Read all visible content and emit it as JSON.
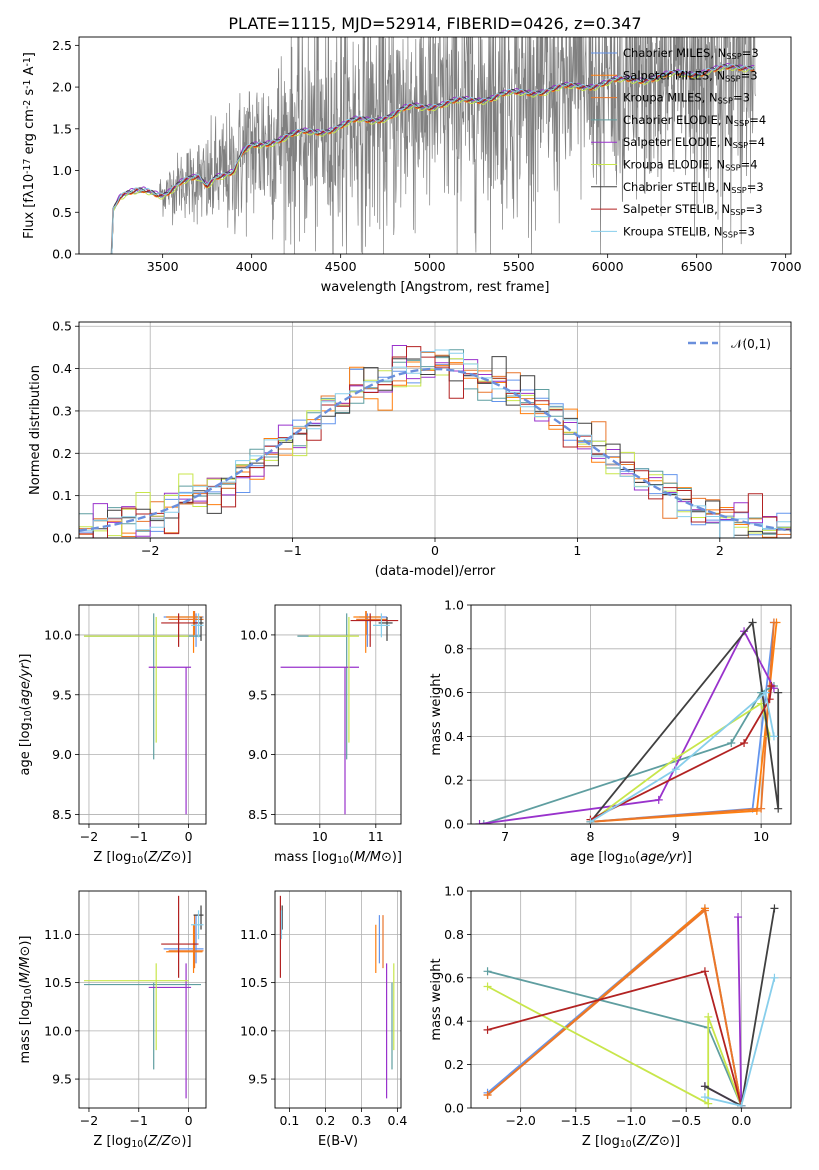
{
  "figure": {
    "title": "PLATE=1115, MJD=52914, FIBERID=0426, z=0.347"
  },
  "series_names": [
    "Chabrier MILES, N$_{SSP}$=3",
    "Salpeter MILES, N$_{SSP}$=3",
    "Kroupa MILES, N$_{SSP}$=3",
    "Chabrier ELODIE, N$_{SSP}$=4",
    "Salpeter ELODIE, N$_{SSP}$=4",
    "Kroupa ELODIE, N$_{SSP}$=4",
    "Chabrier STELIB, N$_{SSP}$=3",
    "Salpeter STELIB, N$_{SSP}$=3",
    "Kroupa STELIB, N$_{SSP}$=3"
  ],
  "colors": [
    "#6495ed",
    "#ff7f0e",
    "#e9762b",
    "#5f9ea0",
    "#9932cc",
    "#c8e64b",
    "#404040",
    "#b22222",
    "#87ceeb"
  ],
  "chart_data": [
    {
      "id": "spectrum",
      "type": "line",
      "xlabel": "wavelength [Angstrom, rest frame]",
      "ylabel": "Flux [f$_\\lambda$10$^{-17}$ erg cm$^{-2}$ s$^{-1}$ A$^{-1}$]",
      "xlim": [
        3030,
        7030
      ],
      "ylim": [
        0,
        2.6
      ],
      "xticks": [
        3500,
        4000,
        4500,
        5000,
        5500,
        6000,
        6500,
        7000
      ],
      "yticks": [
        0.0,
        0.5,
        1.0,
        1.5,
        2.0,
        2.5
      ],
      "legend": "upper right",
      "model_continuum": {
        "x": [
          3210,
          3220,
          3260,
          3300,
          3400,
          3500,
          3600,
          3700,
          3750,
          3800,
          3900,
          3950,
          4000,
          4100,
          4200,
          4300,
          4400,
          4500,
          4600,
          4700,
          4800,
          4860,
          4900,
          5000,
          5100,
          5200,
          5300,
          5400,
          5500,
          5600,
          5700,
          5800,
          5900,
          6000,
          6100,
          6200,
          6300,
          6400,
          6500,
          6560,
          6600,
          6700,
          6800
        ],
        "y": [
          0.0,
          0.55,
          0.7,
          0.72,
          0.74,
          0.72,
          0.85,
          0.9,
          0.82,
          0.95,
          0.98,
          1.2,
          1.28,
          1.35,
          1.4,
          1.45,
          1.48,
          1.52,
          1.6,
          1.62,
          1.66,
          1.72,
          1.76,
          1.78,
          1.8,
          1.83,
          1.86,
          1.9,
          1.92,
          1.95,
          1.97,
          2.0,
          2.02,
          2.05,
          2.08,
          2.1,
          2.12,
          2.15,
          2.17,
          2.2,
          2.2,
          2.22,
          2.25
        ]
      },
      "observed_data": {
        "x_range": [
          3210,
          6830
        ],
        "color": "#808080",
        "note_range": "noisy observed flux"
      }
    },
    {
      "id": "residuals",
      "type": "line",
      "xlabel": "(data-model)/error",
      "ylabel": "Normed distribution",
      "xlim": [
        -2.5,
        2.5
      ],
      "ylim": [
        0,
        0.51
      ],
      "xticks": [
        -2,
        -1,
        0,
        1,
        2
      ],
      "yticks": [
        0.0,
        0.1,
        0.2,
        0.3,
        0.4,
        0.5
      ],
      "legend": "upper right",
      "reference_label": "$\\mathcal{N}(0,1)$",
      "reference_color": "#6a8fdc",
      "bin_width": 0.1
    },
    {
      "id": "age_vs_Z",
      "type": "scatter",
      "xlabel": "Z [log$_{10}$($Z/Z_\\odot$)]",
      "ylabel": "age  [log$_{10}$($age/yr$)]",
      "xlim": [
        -2.2,
        0.35
      ],
      "ylim": [
        8.42,
        10.25
      ],
      "xticks": [
        -2,
        -1,
        0
      ],
      "yticks": [
        8.5,
        9.0,
        9.5,
        10.0
      ]
    },
    {
      "id": "age_vs_mass",
      "type": "scatter",
      "xlabel": "mass [log$_{10}$($M/M_\\odot$)]",
      "ylabel": "",
      "xlim": [
        9.2,
        11.45
      ],
      "ylim": [
        8.42,
        10.25
      ],
      "xticks": [
        10,
        11
      ],
      "yticks": [
        8.5,
        9.0,
        9.5,
        10.0
      ]
    },
    {
      "id": "massweight_vs_age",
      "type": "line",
      "xlabel": "age  [log$_{10}$($age/yr$)]",
      "ylabel": "mass weight",
      "xlim": [
        6.6,
        10.35
      ],
      "ylim": [
        0,
        1.0
      ],
      "xticks": [
        7,
        8,
        9,
        10
      ],
      "yticks": [
        0.0,
        0.2,
        0.4,
        0.6,
        0.8,
        1.0
      ],
      "series": [
        {
          "x": [
            8.0,
            9.9,
            10.15
          ],
          "y": [
            0.01,
            0.07,
            0.92
          ]
        },
        {
          "x": [
            8.0,
            9.95,
            10.18
          ],
          "y": [
            0.01,
            0.06,
            0.92
          ]
        },
        {
          "x": [
            8.0,
            10.0,
            10.15
          ],
          "y": [
            0.01,
            0.07,
            0.92
          ]
        },
        {
          "x": [
            6.75,
            9.65,
            10.0,
            10.15
          ],
          "y": [
            0.0,
            0.37,
            0.6,
            0.63
          ]
        },
        {
          "x": [
            6.7,
            8.8,
            9.8,
            10.15
          ],
          "y": [
            0.0,
            0.11,
            0.88,
            0.62
          ]
        },
        {
          "x": [
            8.0,
            9.0,
            10.0,
            10.1
          ],
          "y": [
            0.01,
            0.3,
            0.55,
            0.4
          ]
        },
        {
          "x": [
            8.0,
            9.9,
            10.2,
            10.2
          ],
          "y": [
            0.01,
            0.92,
            0.07,
            0.6
          ]
        },
        {
          "x": [
            8.0,
            9.8,
            10.1,
            10.12
          ],
          "y": [
            0.02,
            0.37,
            0.57,
            0.63
          ]
        },
        {
          "x": [
            8.0,
            9.0,
            10.05,
            10.15
          ],
          "y": [
            0.01,
            0.25,
            0.6,
            0.4
          ]
        }
      ]
    },
    {
      "id": "mass_vs_Z",
      "type": "scatter",
      "xlabel": "Z [log$_{10}$($Z/Z_\\odot$)]",
      "ylabel": "mass [log$_{10}$($M/M_\\odot$)]",
      "xlim": [
        -2.2,
        0.35
      ],
      "ylim": [
        9.2,
        11.45
      ],
      "xticks": [
        -2,
        -1,
        0
      ],
      "yticks": [
        9.5,
        10.0,
        10.5,
        11.0
      ]
    },
    {
      "id": "mass_vs_EBV",
      "type": "scatter",
      "xlabel": "E(B-V)",
      "ylabel": "",
      "xlim": [
        0.06,
        0.41
      ],
      "ylim": [
        9.2,
        11.45
      ],
      "xticks": [
        0.1,
        0.2,
        0.3,
        0.4
      ],
      "yticks": [
        9.5,
        10.0,
        10.5,
        11.0
      ]
    },
    {
      "id": "massweight_vs_Z",
      "type": "line",
      "xlabel": "Z [log$_{10}$($Z/Z_\\odot$)]",
      "ylabel": "mass weight",
      "xlim": [
        -2.45,
        0.45
      ],
      "ylim": [
        0,
        1.0
      ],
      "xticks": [
        -2.0,
        -1.5,
        -1.0,
        -0.5,
        0.0
      ],
      "yticks": [
        0.0,
        0.2,
        0.4,
        0.6,
        0.8,
        1.0
      ],
      "series": [
        {
          "x": [
            -2.3,
            -0.33,
            0.0
          ],
          "y": [
            0.07,
            0.92,
            0.01
          ]
        },
        {
          "x": [
            -2.3,
            -0.33,
            0.0
          ],
          "y": [
            0.06,
            0.92,
            0.01
          ]
        },
        {
          "x": [
            -2.3,
            -0.33,
            0.0
          ],
          "y": [
            0.06,
            0.91,
            0.01
          ]
        },
        {
          "x": [
            -2.3,
            -0.3,
            0.0
          ],
          "y": [
            0.63,
            0.37,
            0.01
          ]
        },
        {
          "x": [
            -0.33,
            0.0,
            -0.03
          ],
          "y": [
            0.1,
            0.01,
            0.88
          ]
        },
        {
          "x": [
            -2.3,
            -0.3,
            -0.3,
            0.0
          ],
          "y": [
            0.56,
            0.02,
            0.42,
            0.01
          ]
        },
        {
          "x": [
            -0.33,
            0.0,
            0.3
          ],
          "y": [
            0.1,
            0.01,
            0.92
          ]
        },
        {
          "x": [
            -2.3,
            -0.33,
            0.0
          ],
          "y": [
            0.36,
            0.63,
            0.01
          ]
        },
        {
          "x": [
            -0.33,
            0.0,
            0.3
          ],
          "y": [
            0.05,
            0.01,
            0.6
          ]
        }
      ]
    }
  ]
}
